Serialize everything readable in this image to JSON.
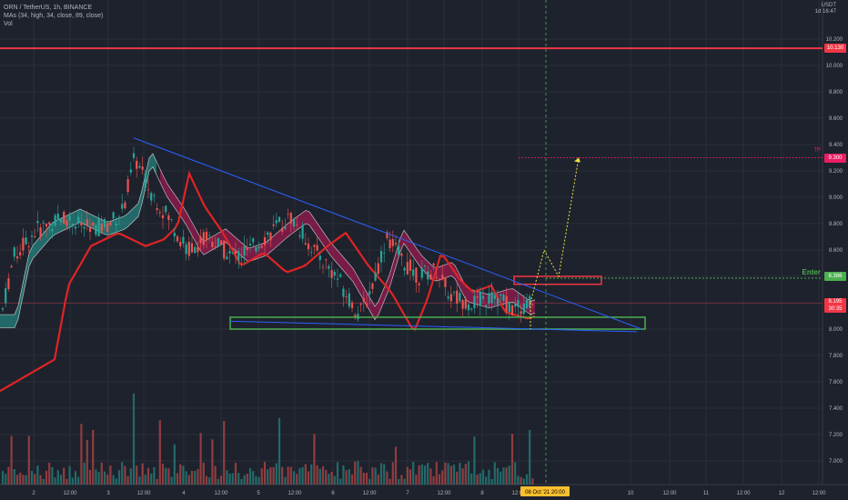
{
  "header": {
    "symbol_line": "ORN / TetherUS, 1h, BINANCE",
    "indicator_ma": "MAs (34, high, 34, close, 89, close)",
    "indicator_vol": "Vol"
  },
  "price_axis": {
    "currency": "USDT",
    "currency_sub": "1d 16:47",
    "labels": [
      "10.200",
      "10.000",
      "9.800",
      "9.600",
      "9.400",
      "9.200",
      "9.000",
      "8.800",
      "8.600",
      "8.400",
      "8.200",
      "8.000",
      "7.800",
      "7.600",
      "7.400",
      "7.200",
      "7.000"
    ],
    "tags": {
      "resistance": {
        "value": "10.130",
        "color": "#f23645"
      },
      "tp": {
        "value": "9.300",
        "color": "#e91e63"
      },
      "enter": {
        "value": "8.386",
        "color": "#4caf50"
      },
      "last_price": {
        "value": "8.195",
        "sub": "30:35",
        "color": "#f23645"
      }
    }
  },
  "time_axis": {
    "labels": [
      "2",
      "12:00",
      "3",
      "12:00",
      "4",
      "12:00",
      "5",
      "12:00",
      "6",
      "12:00",
      "7",
      "12:00",
      "8",
      "12:00",
      "10",
      "12:00",
      "11",
      "12:00",
      "12",
      "12:00"
    ],
    "cursor_label": "08 Oct '21  20:00"
  },
  "annotations": {
    "enter_label": "Enter",
    "tp_label": "TP"
  },
  "colors": {
    "background": "#1e222d",
    "grid": "#2a2e39",
    "up": "#26a69a",
    "down": "#ef5350",
    "trendline": "#2962ff",
    "ma_red": "#e02424",
    "support_box": "#4caf50",
    "entry_box": "#f23645"
  },
  "chart_data": {
    "type": "candlestick",
    "symbol": "ORN/USDT",
    "timeframe": "1h",
    "price_range": [
      6.9,
      10.25
    ],
    "resistance_level": 10.13,
    "take_profit": 9.3,
    "entry": 8.386,
    "last_price": 8.195,
    "support_zone": [
      8.0,
      8.09
    ],
    "entry_zone": [
      8.34,
      8.4
    ],
    "trendline_top": {
      "from_price": 9.45,
      "to_price": 8.0
    },
    "trendline_bottom": {
      "from_price": 8.06,
      "to_price": 7.98
    },
    "projection_path": [
      8.2,
      8.6,
      8.4,
      9.3
    ],
    "x_ticks": [
      "2",
      "12:00",
      "3",
      "12:00",
      "4",
      "12:00",
      "5",
      "12:00",
      "6",
      "12:00",
      "7",
      "12:00",
      "8",
      "12:00",
      "10",
      "12:00",
      "11",
      "12:00",
      "12",
      "12:00"
    ]
  }
}
